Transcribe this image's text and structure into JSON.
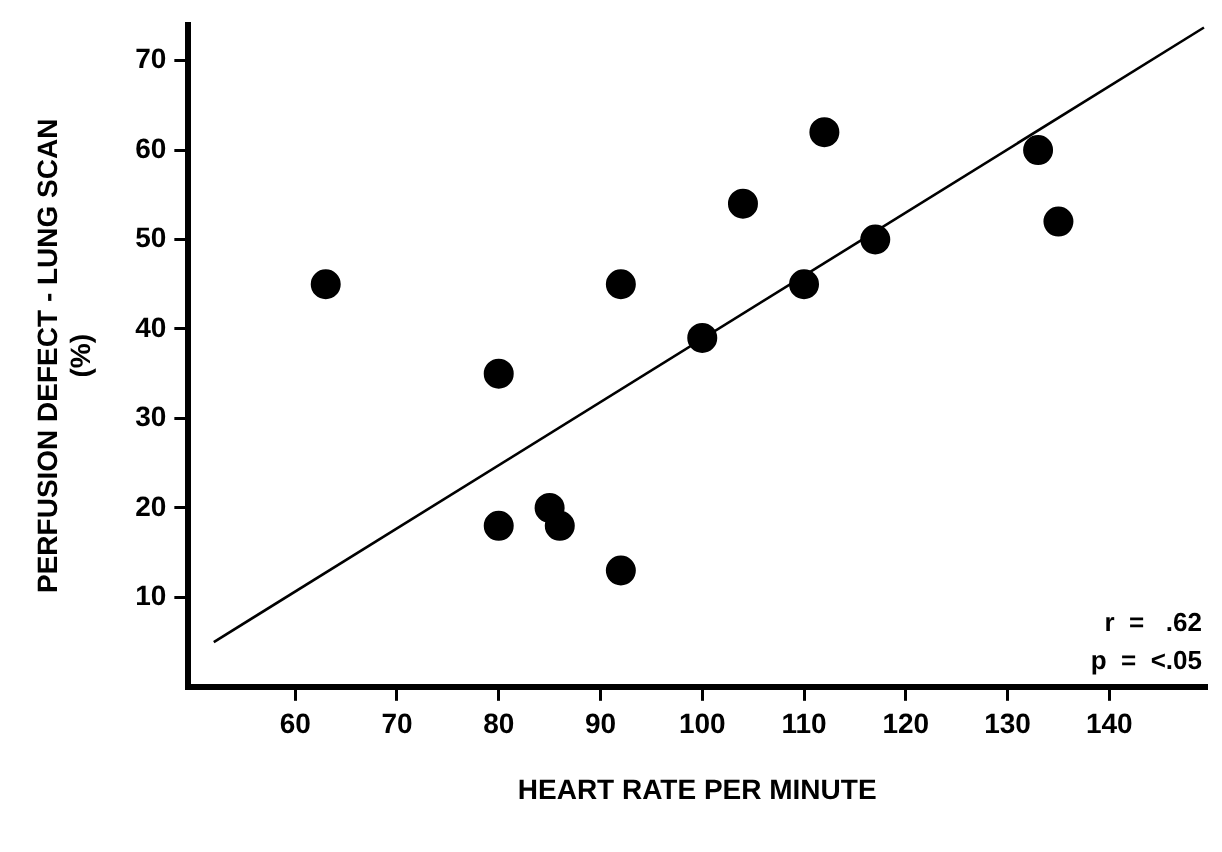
{
  "chart_data": {
    "type": "scatter",
    "xlabel": "HEART RATE PER MINUTE",
    "ylabel": "PERFUSION DEFECT - LUNG SCAN\n(%)",
    "xlim": [
      49.5,
      149.5
    ],
    "xticks": [
      60,
      70,
      80,
      90,
      100,
      110,
      120,
      130,
      140
    ],
    "ylim": [
      0,
      74
    ],
    "yticks": [
      10,
      20,
      30,
      40,
      50,
      60,
      70
    ],
    "grid": false,
    "legend": false,
    "series": [
      {
        "marker": "circle",
        "color": "#000000",
        "x": [
          63,
          80,
          80,
          85,
          86,
          92,
          92,
          100,
          104,
          110,
          112,
          117,
          133,
          135
        ],
        "values": [
          45,
          35,
          18,
          20,
          18,
          13,
          45,
          39,
          54,
          45,
          62,
          50,
          60,
          52
        ]
      },
      {
        "type": "line",
        "marker": "none",
        "color": "#000000",
        "x": [
          52,
          149.3
        ],
        "values": [
          5,
          73.7
        ]
      }
    ],
    "annotations": [
      "r  =   .62",
      "p  =  <.05"
    ]
  }
}
